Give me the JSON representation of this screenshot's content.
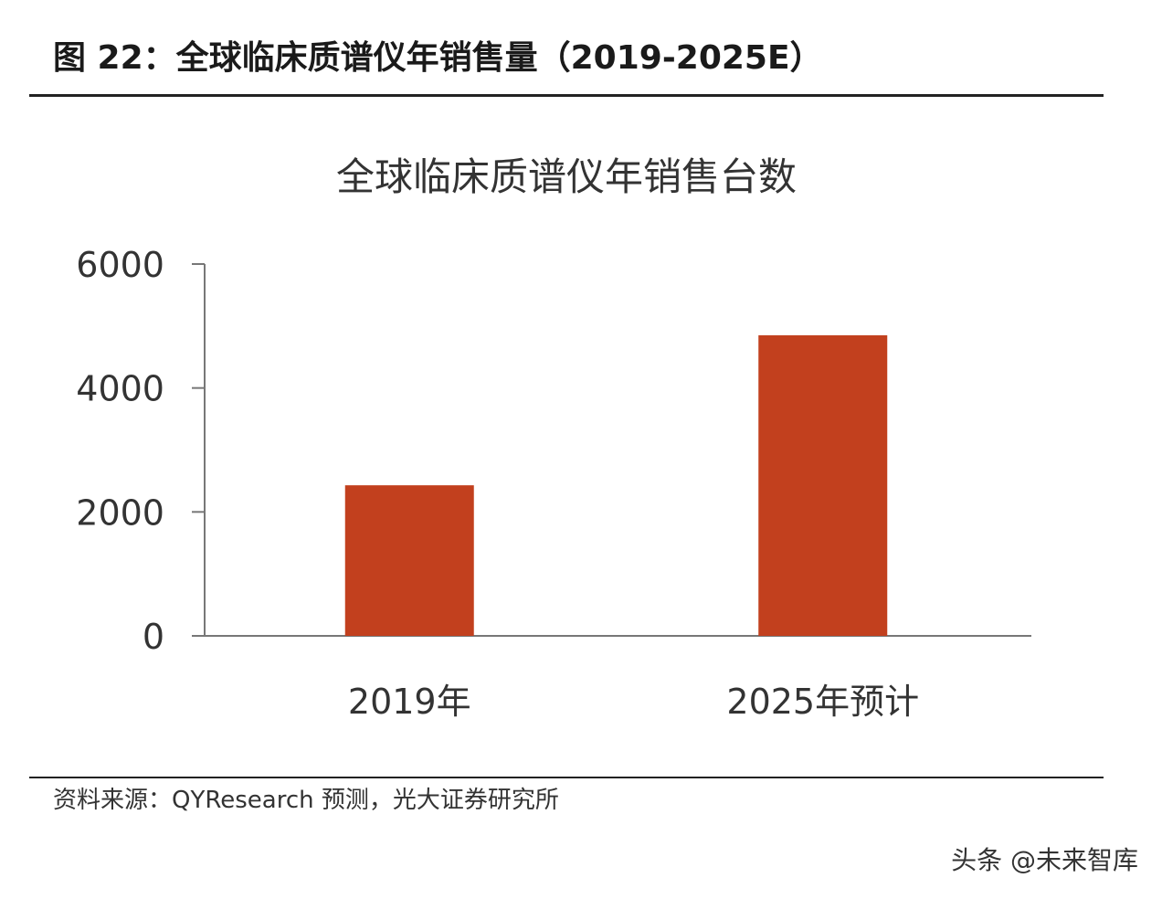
{
  "header": {
    "title": "图 22：全球临床质谱仪年销售量（2019-2025E）"
  },
  "chart_data": {
    "type": "bar",
    "title": "全球临床质谱仪年销售台数",
    "categories": [
      "2019年",
      "2025年预计"
    ],
    "values": [
      2430,
      4850
    ],
    "yticks": [
      "0",
      "2000",
      "4000",
      "6000"
    ],
    "ylim": [
      0,
      6000
    ],
    "xlabel": "",
    "ylabel": "",
    "grid": false,
    "bar_color": "#C2401E"
  },
  "footer": {
    "source": "资料来源：QYResearch 预测，光大证券研究所",
    "watermark": "头条 @未来智库"
  }
}
